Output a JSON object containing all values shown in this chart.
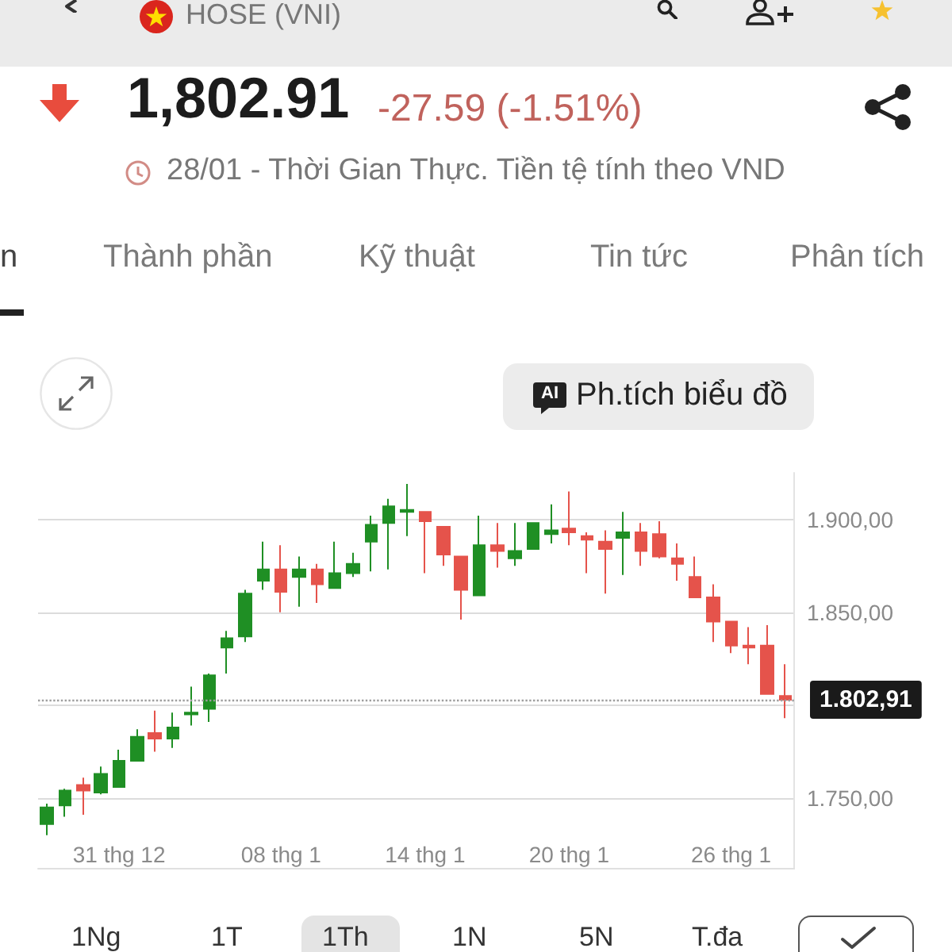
{
  "chart_data": {
    "type": "candlestick",
    "title": "HOSE (VNI)",
    "subtitle": "28/01 - Thời Gian Thực. Tiền tệ tính theo VND",
    "annotations": [
      "1,802.91",
      "-27.59 (-1.51%)",
      "n",
      "Thành phần",
      "Kỹ thuật",
      "Tin tức",
      "Phân tích",
      "AI",
      "Ph.tích biểu đồ",
      "1Ng",
      "1T",
      "1Th",
      "1N",
      "5N",
      "T.đa"
    ],
    "categories": [
      null,
      null,
      null,
      null,
      "31 thg 12",
      null,
      null,
      null,
      null,
      null,
      null,
      null,
      null,
      "08 thg 1",
      null,
      null,
      null,
      null,
      null,
      null,
      null,
      "14 thg 1",
      null,
      null,
      null,
      null,
      null,
      null,
      null,
      "20 thg 1",
      null,
      null,
      null,
      null,
      null,
      null,
      null,
      null,
      "26 thg 1",
      null,
      null,
      null
    ],
    "ohlc": [
      [
        1736,
        1747,
        1730,
        1745
      ],
      [
        1746,
        1755,
        1740,
        1754
      ],
      [
        1757,
        1761,
        1741,
        1754
      ],
      [
        1753,
        1767,
        1752,
        1763
      ],
      [
        1756,
        1776,
        1756,
        1770
      ],
      [
        1770,
        1787,
        1770,
        1783
      ],
      [
        1785,
        1797,
        1775,
        1782
      ],
      [
        1782,
        1796,
        1777,
        1788
      ],
      [
        1795,
        1810,
        1789,
        1796
      ],
      [
        1798,
        1817,
        1791,
        1816
      ],
      [
        1831,
        1840,
        1817,
        1836
      ],
      [
        1837,
        1862,
        1834,
        1860
      ],
      [
        1867,
        1888,
        1862,
        1873
      ],
      [
        1873,
        1886,
        1850,
        1861
      ],
      [
        1869,
        1880,
        1853,
        1873
      ],
      [
        1873,
        1876,
        1855,
        1865
      ],
      [
        1863,
        1888,
        1863,
        1871
      ],
      [
        1871,
        1882,
        1869,
        1876
      ],
      [
        1888,
        1902,
        1872,
        1897
      ],
      [
        1898,
        1911,
        1873,
        1907
      ],
      [
        1904,
        1919,
        1891,
        1905
      ],
      [
        1904,
        1904,
        1871,
        1899
      ],
      [
        1896,
        1896,
        1875,
        1881
      ],
      [
        1880,
        1880,
        1846,
        1862
      ],
      [
        1859,
        1902,
        1859,
        1886
      ],
      [
        1886,
        1898,
        1874,
        1883
      ],
      [
        1879,
        1898,
        1875,
        1883
      ],
      [
        1884,
        1898,
        1884,
        1898
      ],
      [
        1892,
        1908,
        1887,
        1894
      ],
      [
        1895,
        1915,
        1886,
        1893
      ],
      [
        1891,
        1893,
        1871,
        1889
      ],
      [
        1888,
        1894,
        1860,
        1884
      ],
      [
        1890,
        1904,
        1870,
        1893
      ],
      [
        1893,
        1898,
        1875,
        1883
      ],
      [
        1892,
        1899,
        1879,
        1880
      ],
      [
        1879,
        1887,
        1867,
        1876
      ],
      [
        1869,
        1880,
        1858,
        1858
      ],
      [
        1858,
        1865,
        1834,
        1845
      ],
      [
        1845,
        1845,
        1828,
        1832
      ],
      [
        1832,
        1842,
        1822,
        1831
      ],
      [
        1832,
        1843,
        1806,
        1806
      ],
      [
        1805,
        1822,
        1793,
        1802.91
      ]
    ],
    "colors": [
      "#1f8f24",
      "#1f8f24",
      "#e5534b",
      "#1f8f24",
      "#1f8f24",
      "#1f8f24",
      "#e5534b",
      "#1f8f24",
      "#1f8f24",
      "#1f8f24",
      "#1f8f24",
      "#1f8f24",
      "#1f8f24",
      "#e5534b",
      "#1f8f24",
      "#e5534b",
      "#1f8f24",
      "#1f8f24",
      "#1f8f24",
      "#1f8f24",
      "#1f8f24",
      "#e5534b",
      "#e5534b",
      "#e5534b",
      "#1f8f24",
      "#e5534b",
      "#1f8f24",
      "#1f8f24",
      "#1f8f24",
      "#e5534b",
      "#e5534b",
      "#e5534b",
      "#1f8f24",
      "#e5534b",
      "#e5534b",
      "#e5534b",
      "#e5534b",
      "#e5534b",
      "#e5534b",
      "#e5534b",
      "#e5534b",
      "#e5534b"
    ],
    "ylim": [
      1712,
      1925
    ],
    "yticks": [
      {
        "value": 1750,
        "label": "1.750,00"
      },
      {
        "value": 1800,
        "label": null
      },
      {
        "value": 1850,
        "label": "1.850,00"
      },
      {
        "value": 1900,
        "label": "1.900,00"
      }
    ],
    "grid": "y",
    "ref_lines": [
      {
        "axis": "y",
        "value": 1802.91,
        "label": "1.802,91",
        "color": "#9e9e9e",
        "line_style": "dotted"
      }
    ]
  }
}
